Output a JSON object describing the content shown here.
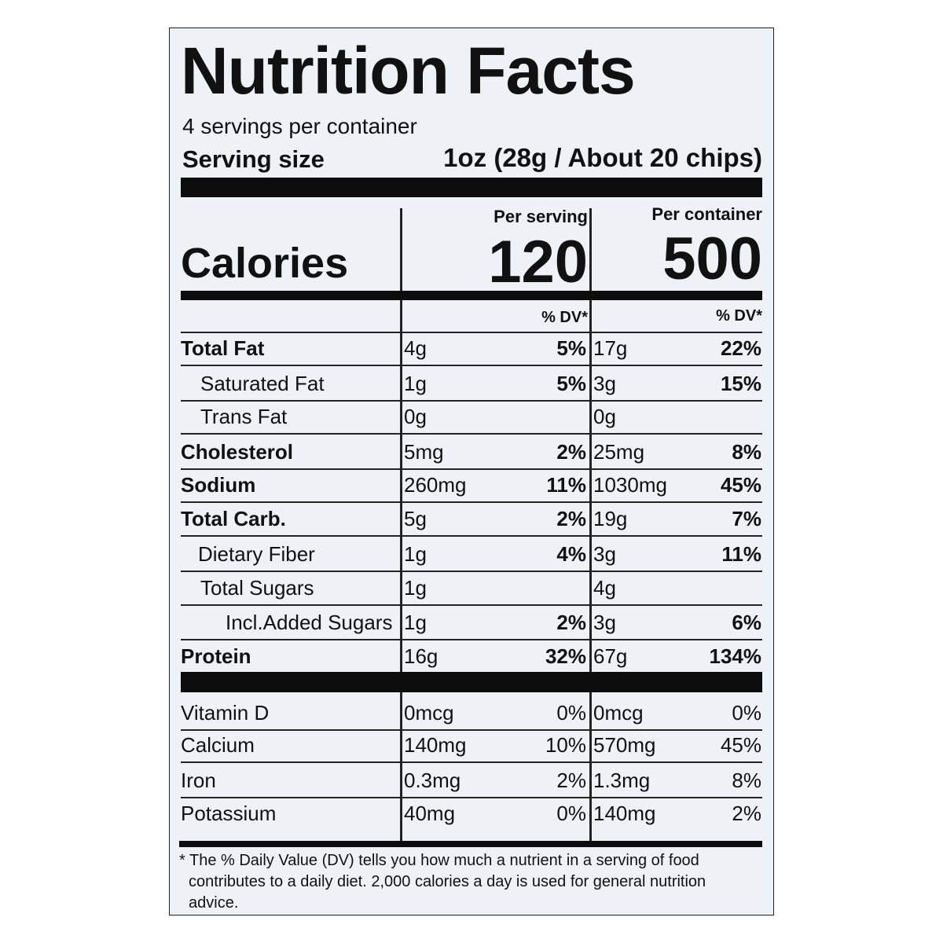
{
  "header": {
    "title": "Nutrition Facts",
    "servings_per_container": "4 servings per container",
    "serving_size_label": "Serving size",
    "serving_size": "1oz (28g / About 20 chips)"
  },
  "calories": {
    "label": "Calories",
    "per_serving_header": "Per serving",
    "per_container_header": "Per container",
    "per_serving": "120",
    "per_container": "500",
    "dv_header": "% DV*"
  },
  "nutrients": [
    {
      "name": "Total Fat",
      "per_serving": {
        "amount": "4g",
        "dv": "5%"
      },
      "per_container": {
        "amount": "17g",
        "dv": "22%"
      }
    },
    {
      "name": "Saturated Fat",
      "per_serving": {
        "amount": "1g",
        "dv": "5%"
      },
      "per_container": {
        "amount": "3g",
        "dv": "15%"
      }
    },
    {
      "name": "Trans Fat",
      "per_serving": {
        "amount": "0g"
      },
      "per_container": {
        "amount": "0g"
      }
    },
    {
      "name": "Cholesterol",
      "per_serving": {
        "amount": "5mg",
        "dv": "2%"
      },
      "per_container": {
        "amount": "25mg",
        "dv": "8%"
      }
    },
    {
      "name": "Sodium",
      "per_serving": {
        "amount": "260mg",
        "dv": "11%"
      },
      "per_container": {
        "amount": "1030mg",
        "dv": "45%"
      }
    },
    {
      "name": "Total Carb.",
      "per_serving": {
        "amount": "5g",
        "dv": "2%"
      },
      "per_container": {
        "amount": "19g",
        "dv": "7%"
      }
    },
    {
      "name": "Dietary Fiber",
      "per_serving": {
        "amount": "1g",
        "dv": "4%"
      },
      "per_container": {
        "amount": "3g",
        "dv": "11%"
      }
    },
    {
      "name": "Total Sugars",
      "per_serving": {
        "amount": "1g"
      },
      "per_container": {
        "amount": "4g"
      }
    },
    {
      "name": "Incl.Added Sugars",
      "per_serving": {
        "amount": "1g",
        "dv": "2%"
      },
      "per_container": {
        "amount": "3g",
        "dv": "6%"
      }
    },
    {
      "name": "Protein",
      "per_serving": {
        "amount": "16g",
        "dv": "32%"
      },
      "per_container": {
        "amount": "67g",
        "dv": "134%"
      }
    },
    {
      "name": "Vitamin D",
      "per_serving": {
        "amount": "0mcg",
        "dv": "0%"
      },
      "per_container": {
        "amount": "0mcg",
        "dv": "0%"
      }
    },
    {
      "name": "Calcium",
      "per_serving": {
        "amount": "140mg",
        "dv": "10%"
      },
      "per_container": {
        "amount": "570mg",
        "dv": "45%"
      }
    },
    {
      "name": "Iron",
      "per_serving": {
        "amount": "0.3mg",
        "dv": "2%"
      },
      "per_container": {
        "amount": "1.3mg",
        "dv": "8%"
      }
    },
    {
      "name": "Potassium",
      "per_serving": {
        "amount": "40mg",
        "dv": "0%"
      },
      "per_container": {
        "amount": "140mg",
        "dv": "2%"
      }
    }
  ],
  "footnote": "* The % Daily Value (DV) tells you how much a nutrient in a serving of food contributes to a daily diet. 2,000 calories a day is used for general nutrition advice."
}
